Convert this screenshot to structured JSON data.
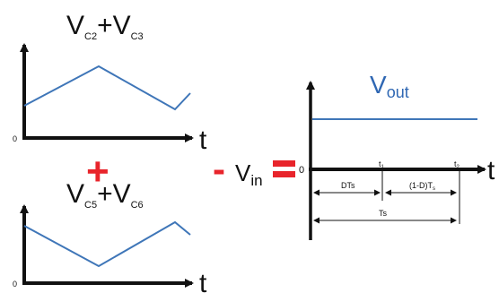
{
  "top_plot": {
    "label_main": "V",
    "label_sub1": "C2",
    "label_plus": "+V",
    "label_sub2": "C3",
    "origin": "0",
    "axis_label": "t"
  },
  "bottom_plot": {
    "label_main": "V",
    "label_sub1": "C5",
    "label_plus": "+V",
    "label_sub2": "C6",
    "origin": "0",
    "axis_label": "t"
  },
  "operators": {
    "plus": "+",
    "minus": "-",
    "equals": "="
  },
  "vin": {
    "main": "V",
    "sub": "in"
  },
  "right_plot": {
    "label_main": "V",
    "label_sub": "out",
    "origin": "0",
    "axis_label": "t",
    "t1_label": "t",
    "t1_sub": "1",
    "t2_label": "t",
    "t2_sub": "2",
    "dts_label": "DTs",
    "one_minus_d_label": "(1-D)T",
    "one_minus_d_sub": "s",
    "ts_label": "Ts"
  },
  "colors": {
    "waveform": "#3f76b8",
    "operator_red": "#e8242b",
    "axis": "#111111"
  }
}
